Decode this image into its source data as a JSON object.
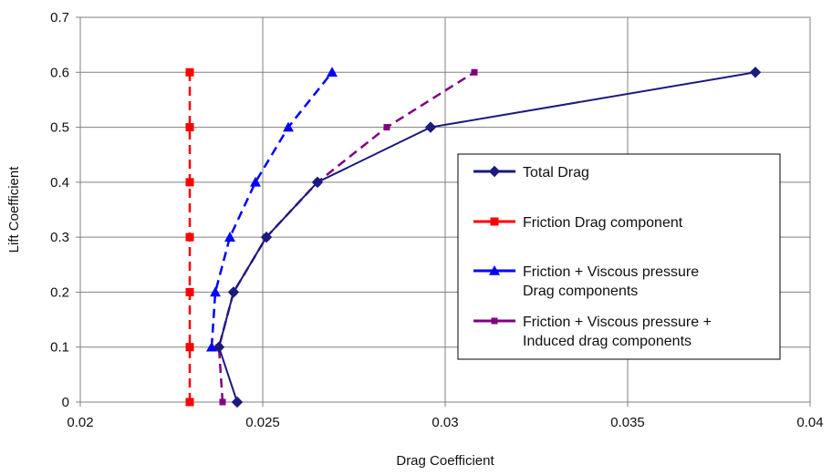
{
  "chart_data": {
    "type": "line",
    "title": "",
    "xlabel": "Drag Coefficient",
    "ylabel": "Lift Coefficient",
    "xlim": [
      0.02,
      0.04
    ],
    "ylim": [
      0,
      0.7
    ],
    "x_ticks": [
      "0.02",
      "0.025",
      "0.03",
      "0.035",
      "0.04"
    ],
    "y_ticks": [
      "0",
      "0.1",
      "0.2",
      "0.3",
      "0.4",
      "0.5",
      "0.6",
      "0.7"
    ],
    "grid": true,
    "legend_position": "right",
    "series": [
      {
        "name": "Total Drag",
        "color": "#1a1a80",
        "line": "solid",
        "marker": "diamond",
        "points": [
          [
            0.0243,
            0
          ],
          [
            0.0238,
            0.1
          ],
          [
            0.0242,
            0.2
          ],
          [
            0.0251,
            0.3
          ],
          [
            0.0265,
            0.4
          ],
          [
            0.0296,
            0.5
          ],
          [
            0.0385,
            0.6
          ]
        ]
      },
      {
        "name": "Friction Drag component",
        "color": "#ff0000",
        "line": "dashed",
        "marker": "square",
        "points": [
          [
            0.023,
            0
          ],
          [
            0.023,
            0.1
          ],
          [
            0.023,
            0.2
          ],
          [
            0.023,
            0.3
          ],
          [
            0.023,
            0.4
          ],
          [
            0.023,
            0.5
          ],
          [
            0.023,
            0.6
          ]
        ]
      },
      {
        "name": "Friction + Viscous pressure Drag components",
        "name_lines": [
          "Friction + Viscous pressure",
          "Drag components"
        ],
        "color": "#0000ff",
        "line": "dashed",
        "marker": "triangle",
        "points": [
          [
            0.0236,
            0.1
          ],
          [
            0.0237,
            0.2
          ],
          [
            0.0241,
            0.3
          ],
          [
            0.0248,
            0.4
          ],
          [
            0.0257,
            0.5
          ],
          [
            0.0269,
            0.6
          ]
        ]
      },
      {
        "name": "Friction + Viscous pressure + Induced drag components",
        "name_lines": [
          "Friction + Viscous pressure  +",
          "Induced drag components"
        ],
        "color": "#800080",
        "line": "dashed",
        "marker": "small-square",
        "points": [
          [
            0.0239,
            0
          ],
          [
            0.0238,
            0.1
          ],
          [
            0.0242,
            0.2
          ],
          [
            0.0251,
            0.3
          ],
          [
            0.0265,
            0.4
          ],
          [
            0.0284,
            0.5
          ],
          [
            0.0308,
            0.6
          ]
        ]
      }
    ]
  }
}
